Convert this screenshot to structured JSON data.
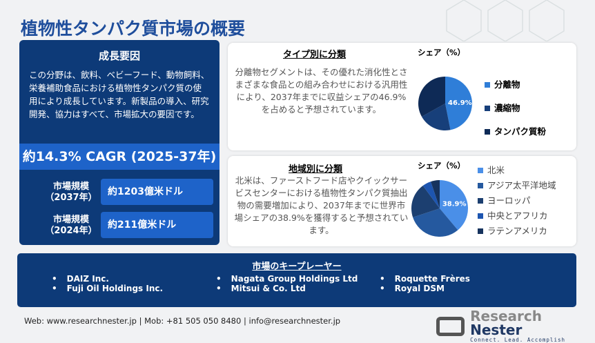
{
  "title": "植物性タンパク質市場の概要",
  "growth": {
    "heading": "成長要因",
    "text": "この分野は、飲料、ベビーフード、動物飼料、栄養補助食品における植物性タンパク質の使用により成長しています。新製品の導入、研究開発、協力はすべて、市場拡大の要因です。",
    "cagr": "約14.3% CAGR (2025-37年)",
    "size_2037_label": "市場規模\n（2037年）",
    "size_2037": "約1203億米ドル",
    "size_2024_label": "市場規模\n（2024年）",
    "size_2024": "約211億米ドル"
  },
  "type_card": {
    "heading": "タイプ別に分類",
    "text": "分離物セグメントは、その優れた消化性とさまざまな食品との組み合わせにおける汎用性により、2037年までに収益シェアの46.9%を占めると予想されています。",
    "share_label": "シェア（%）"
  },
  "region_card": {
    "heading": "地域別に分類",
    "text": "北米は、ファーストフード店やクイックサービスセンターにおける植物性タンパク質抽出物の需要増加により、2037年までに世界市場シェアの38.9%を獲得すると予想されています。",
    "share_label": "シェア（%）"
  },
  "chart_data": [
    {
      "type": "pie",
      "categories": [
        "分離物",
        "濃縮物",
        "タンパク質粉"
      ],
      "values": [
        46.9,
        20,
        33.1
      ],
      "colors": [
        "#2f7ed8",
        "#173f7a",
        "#0e2a56"
      ],
      "data_labels": [
        "46.9%",
        "",
        ""
      ]
    },
    {
      "type": "pie",
      "categories": [
        "北米",
        "アジア太平洋地域",
        "ヨーロッパ",
        "中央とアフリカ",
        "ラテンアメリカ"
      ],
      "values": [
        38.9,
        31,
        20,
        5,
        5.1
      ],
      "colors": [
        "#4a8fe8",
        "#25599f",
        "#1c3f70",
        "#1d55b0",
        "#16335e"
      ],
      "data_labels": [
        "38.9%",
        "",
        "",
        "",
        ""
      ]
    }
  ],
  "players": {
    "heading": "市場のキープレーヤー",
    "col1": [
      "DAIZ Inc.",
      "Fuji Oil Holdings Inc."
    ],
    "col2": [
      "Nagata Group Holdings Ltd",
      "Mitsui & Co. Ltd"
    ],
    "col3": [
      "Roquette Frères",
      "Royal DSM"
    ]
  },
  "footer": "Web: www.researchnester.jp | Mob: +81 505 050 8480 | info@researchnester.jp",
  "logo": {
    "name1": "Research ",
    "name2": "Nester",
    "tagline": "Connect. Lead. Accomplish"
  }
}
